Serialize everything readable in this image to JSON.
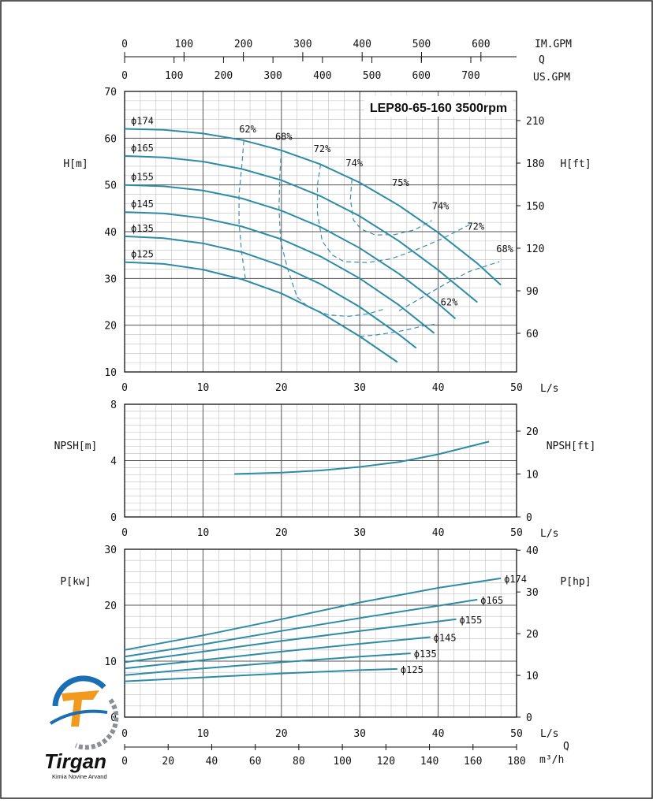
{
  "chart_data": [
    {
      "type": "line",
      "title": "LEP80-65-160 3500rpm",
      "xlabel": "L/s",
      "ylabel": "H[m]",
      "y2label": "H[ft]",
      "xlim": [
        0,
        50
      ],
      "ylim": [
        10,
        70
      ],
      "x_ticks": [
        0,
        10,
        20,
        30,
        40,
        50
      ],
      "y_ticks": [
        10,
        20,
        30,
        40,
        50,
        60,
        70
      ],
      "y2_ticks": [
        60,
        90,
        120,
        150,
        180,
        210
      ],
      "top_axes": [
        {
          "label": "IM.GPM",
          "ticks": [
            0,
            100,
            200,
            300,
            400,
            500,
            600
          ],
          "max": 660
        },
        {
          "label": "Q",
          "ticks": [],
          "max": 0
        },
        {
          "label": "US.GPM",
          "ticks": [
            0,
            100,
            200,
            300,
            400,
            500,
            600,
            700
          ],
          "max": 792.5
        }
      ],
      "series": [
        {
          "name": "ϕ174",
          "points": [
            [
              0,
              62
            ],
            [
              5,
              61.8
            ],
            [
              10,
              61
            ],
            [
              15,
              59.6
            ],
            [
              20,
              57.4
            ],
            [
              25,
              54.4
            ],
            [
              30,
              50.5
            ],
            [
              35,
              45.6
            ],
            [
              40,
              39.8
            ],
            [
              45,
              33.2
            ],
            [
              48,
              28.6
            ]
          ]
        },
        {
          "name": "ϕ165",
          "points": [
            [
              0,
              56.2
            ],
            [
              5,
              55.9
            ],
            [
              10,
              55
            ],
            [
              15,
              53.4
            ],
            [
              20,
              51
            ],
            [
              25,
              47.6
            ],
            [
              30,
              43.3
            ],
            [
              35,
              38
            ],
            [
              40,
              31.8
            ],
            [
              45,
              24.9
            ]
          ]
        },
        {
          "name": "ϕ155",
          "points": [
            [
              0,
              50
            ],
            [
              5,
              49.7
            ],
            [
              10,
              48.8
            ],
            [
              15,
              47.1
            ],
            [
              20,
              44.5
            ],
            [
              25,
              41
            ],
            [
              30,
              36.5
            ],
            [
              35,
              31
            ],
            [
              40,
              24.6
            ],
            [
              42.2,
              21.4
            ]
          ]
        },
        {
          "name": "ϕ145",
          "points": [
            [
              0,
              44.2
            ],
            [
              5,
              43.9
            ],
            [
              10,
              42.9
            ],
            [
              15,
              41.1
            ],
            [
              20,
              38.4
            ],
            [
              25,
              34.7
            ],
            [
              30,
              30
            ],
            [
              35,
              24.3
            ],
            [
              39.5,
              18.3
            ]
          ]
        },
        {
          "name": "ϕ135",
          "points": [
            [
              0,
              39
            ],
            [
              5,
              38.6
            ],
            [
              10,
              37.5
            ],
            [
              15,
              35.6
            ],
            [
              20,
              32.7
            ],
            [
              25,
              28.8
            ],
            [
              30,
              23.9
            ],
            [
              35,
              18
            ],
            [
              37.2,
              15.1
            ]
          ]
        },
        {
          "name": "ϕ125",
          "points": [
            [
              0,
              33.5
            ],
            [
              5,
              33.1
            ],
            [
              10,
              31.9
            ],
            [
              15,
              29.8
            ],
            [
              20,
              26.8
            ],
            [
              25,
              22.7
            ],
            [
              30,
              17.6
            ],
            [
              34.8,
              12.1
            ]
          ]
        }
      ],
      "efficiency_lines": [
        {
          "name": "62%",
          "points": [
            [
              15.2,
              59.5
            ],
            [
              15,
              55
            ],
            [
              14.6,
              48
            ],
            [
              14.6,
              42
            ],
            [
              14.9,
              36
            ],
            [
              15.4,
              30
            ]
          ]
        },
        {
          "name": "68%",
          "points": [
            [
              20,
              57.4
            ],
            [
              19.8,
              52
            ],
            [
              19.7,
              45
            ],
            [
              19.9,
              38
            ],
            [
              20.8,
              32
            ],
            [
              22,
              26
            ],
            [
              23.5,
              23.8
            ],
            [
              26,
              22.2
            ],
            [
              28.5,
              21.9
            ],
            [
              31,
              22.4
            ],
            [
              33,
              23.4
            ]
          ]
        },
        {
          "name": "72%",
          "points": [
            [
              25,
              54.4
            ],
            [
              24.6,
              50
            ],
            [
              24.6,
              44
            ],
            [
              25.2,
              38
            ],
            [
              26.5,
              35
            ],
            [
              28,
              33.6
            ],
            [
              31,
              33.4
            ],
            [
              34,
              34.2
            ],
            [
              37,
              36
            ],
            [
              40.5,
              38.5
            ],
            [
              44,
              41.5
            ]
          ]
        },
        {
          "name": "74%",
          "points": [
            [
              29,
              51.3
            ],
            [
              28.8,
              47
            ],
            [
              29.2,
              42.5
            ],
            [
              30.2,
              40.5
            ],
            [
              32,
              39.3
            ],
            [
              34.5,
              39.4
            ],
            [
              37,
              40.4
            ],
            [
              39.2,
              42.4
            ]
          ]
        },
        {
          "name": "62%",
          "points": [
            [
              30,
              17.6
            ],
            [
              32,
              17.9
            ],
            [
              34,
              18.4
            ],
            [
              36,
              19
            ],
            [
              38,
              19.8
            ],
            [
              39.6,
              20.2
            ]
          ]
        },
        {
          "name": "68%",
          "points": [
            [
              35,
              23.1
            ],
            [
              38,
              26
            ],
            [
              41,
              28.9
            ],
            [
              44,
              31.5
            ],
            [
              47.8,
              33.6
            ]
          ]
        }
      ],
      "efficiency_labels": [
        {
          "text": "62%",
          "at": [
            15.7,
            61.2
          ]
        },
        {
          "text": "68%",
          "at": [
            20.3,
            59.6
          ]
        },
        {
          "text": "72%",
          "at": [
            25.2,
            57
          ]
        },
        {
          "text": "74%",
          "at": [
            29.3,
            54
          ]
        },
        {
          "text": "75%",
          "at": [
            35.2,
            49.8
          ]
        },
        {
          "text": "74%",
          "at": [
            40.3,
            44.8
          ]
        },
        {
          "text": "72%",
          "at": [
            44.8,
            40.4
          ]
        },
        {
          "text": "68%",
          "at": [
            48.5,
            35.6
          ]
        },
        {
          "text": "62%",
          "at": [
            41.4,
            24.2
          ]
        }
      ],
      "grid": true
    },
    {
      "type": "line",
      "title": "",
      "xlabel": "L/s",
      "ylabel": "NPSH[m]",
      "y2label": "NPSH[ft]",
      "xlim": [
        0,
        50
      ],
      "ylim": [
        0,
        8
      ],
      "x_ticks": [
        0,
        10,
        20,
        30,
        40,
        50
      ],
      "y_ticks": [
        0,
        4,
        8
      ],
      "y2_ticks": [
        0,
        10,
        20
      ],
      "series": [
        {
          "name": "",
          "points": [
            [
              14,
              3.05
            ],
            [
              20,
              3.15
            ],
            [
              25,
              3.3
            ],
            [
              30,
              3.55
            ],
            [
              35,
              3.9
            ],
            [
              40,
              4.45
            ],
            [
              46.5,
              5.35
            ]
          ]
        }
      ],
      "grid": true
    },
    {
      "type": "line",
      "title": "",
      "xlabel": "L/s",
      "ylabel": "P[kw]",
      "y2label": "P[hp]",
      "xlim": [
        0,
        50
      ],
      "ylim": [
        0,
        30
      ],
      "x_ticks": [
        0,
        10,
        20,
        30,
        40,
        50
      ],
      "y_ticks": [
        0,
        10,
        20,
        30
      ],
      "y2_ticks": [
        0,
        10,
        20,
        30,
        40
      ],
      "series": [
        {
          "name": "ϕ174",
          "points": [
            [
              0,
              12
            ],
            [
              10,
              14.6
            ],
            [
              20,
              17.5
            ],
            [
              30,
              20.5
            ],
            [
              40,
              23.1
            ],
            [
              48,
              24.8
            ]
          ]
        },
        {
          "name": "ϕ165",
          "points": [
            [
              0,
              10.8
            ],
            [
              10,
              13
            ],
            [
              20,
              15.4
            ],
            [
              30,
              17.7
            ],
            [
              40,
              19.9
            ],
            [
              45,
              21
            ]
          ]
        },
        {
          "name": "ϕ155",
          "points": [
            [
              0,
              9.8
            ],
            [
              10,
              11.7
            ],
            [
              20,
              13.6
            ],
            [
              30,
              15.4
            ],
            [
              40,
              17.1
            ],
            [
              42.3,
              17.5
            ]
          ]
        },
        {
          "name": "ϕ145",
          "points": [
            [
              0,
              8.7
            ],
            [
              10,
              10.2
            ],
            [
              20,
              11.7
            ],
            [
              30,
              13.1
            ],
            [
              39,
              14.3
            ]
          ]
        },
        {
          "name": "ϕ135",
          "points": [
            [
              0,
              7.5
            ],
            [
              10,
              8.7
            ],
            [
              20,
              9.8
            ],
            [
              30,
              10.8
            ],
            [
              36.5,
              11.4
            ]
          ]
        },
        {
          "name": "ϕ125",
          "points": [
            [
              0,
              6.4
            ],
            [
              10,
              7.1
            ],
            [
              20,
              7.8
            ],
            [
              30,
              8.4
            ],
            [
              34.8,
              8.6
            ]
          ]
        }
      ],
      "grid": true
    }
  ],
  "bottom_axes": [
    {
      "label": "L/s",
      "ticks": [
        0,
        10,
        20,
        30,
        40,
        50
      ],
      "max": 50
    },
    {
      "label": "Q",
      "ticks": [],
      "max": 0
    },
    {
      "label": "m³/h",
      "ticks": [
        0,
        20,
        40,
        60,
        80,
        100,
        120,
        140,
        160,
        180
      ],
      "max": 180
    }
  ],
  "logo": {
    "brand": "Tirgan",
    "tagline": "Kimia Novine Arvand",
    "colors": [
      "#1a6fb4",
      "#f29a1e",
      "#8a8f96"
    ]
  },
  "colors": {
    "curve": "#2c8ca6",
    "efficiency": "#3a8fb7",
    "grid_minor": "#bfbfbf",
    "grid_major": "#555555"
  }
}
